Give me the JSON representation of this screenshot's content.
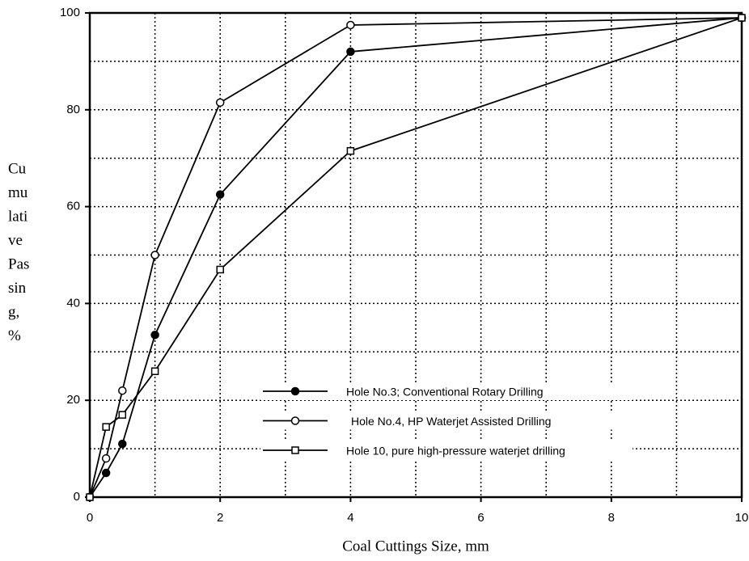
{
  "chart_data": {
    "type": "line",
    "x_label": "Coal Cuttings Size, mm",
    "y_label": [
      "Cu",
      "mu",
      "lati",
      "ve",
      "Pas",
      "sin",
      "g,",
      "%"
    ],
    "x": [
      0,
      0.25,
      0.5,
      1,
      2,
      4,
      10
    ],
    "series": [
      {
        "name": "Hole No.3; Conventional Rotary Drilling",
        "color": "#000000",
        "marker": "filled-circle",
        "values": [
          0,
          5,
          11,
          33.5,
          62.5,
          92,
          99
        ]
      },
      {
        "name": "Hole No.4, HP Waterjet Assisted Drilling",
        "color": "#000000",
        "marker": "open-circle",
        "values": [
          0,
          8,
          22,
          50,
          81.5,
          97.5,
          99
        ]
      },
      {
        "name": "Hole 10, pure high-pressure waterjet drilling",
        "color": "#000000",
        "marker": "open-square",
        "values": [
          0,
          14.5,
          17,
          26,
          47,
          71.5,
          99
        ]
      }
    ],
    "xlim": [
      0,
      10
    ],
    "ylim": [
      0,
      100
    ],
    "xticks": [
      0,
      2,
      4,
      6,
      8,
      10
    ],
    "yticks": [
      0,
      20,
      40,
      60,
      80,
      100
    ],
    "minor_xticks": [
      1,
      3,
      5,
      7,
      9
    ],
    "minor_yticks": [
      10,
      30,
      50,
      70,
      90
    ],
    "grid": "dotted"
  }
}
